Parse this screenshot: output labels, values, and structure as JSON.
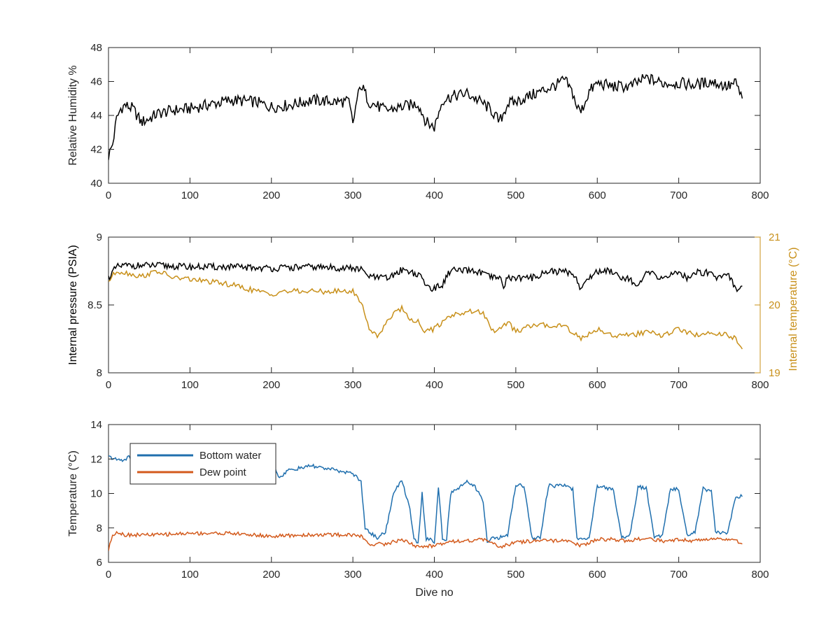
{
  "colors": {
    "humidity": "#000000",
    "pressure": "#000000",
    "internal_temperature": "#C8901A",
    "bottom_water": "#1F6FAE",
    "dew_point": "#D35A1C",
    "axis": "#262626"
  },
  "chart_data": [
    {
      "type": "line",
      "xlabel": "",
      "ylabel": "Relative Humidity %",
      "xlim": [
        0,
        800
      ],
      "ylim": [
        40,
        48
      ],
      "xticks": [
        "0",
        "100",
        "200",
        "300",
        "400",
        "500",
        "600",
        "700",
        "800"
      ],
      "yticks": [
        "40",
        "42",
        "44",
        "46",
        "48"
      ],
      "grid": false,
      "series": [
        {
          "color": "#000000",
          "x": [
            0,
            5,
            10,
            15,
            20,
            30,
            40,
            50,
            60,
            80,
            100,
            120,
            150,
            180,
            200,
            220,
            250,
            280,
            295,
            300,
            305,
            310,
            320,
            340,
            360,
            380,
            390,
            400,
            410,
            420,
            440,
            460,
            470,
            480,
            490,
            500,
            520,
            550,
            560,
            570,
            575,
            580,
            590,
            600,
            620,
            640,
            660,
            680,
            700,
            720,
            740,
            760,
            770,
            778
          ],
          "values": [
            41.6,
            42.3,
            43.8,
            44.4,
            44.6,
            44.4,
            43.6,
            43.8,
            44.1,
            44.3,
            44.4,
            44.6,
            44.9,
            44.8,
            44.5,
            44.6,
            44.9,
            44.8,
            44.8,
            43.5,
            44.9,
            45.8,
            44.8,
            44.3,
            44.5,
            44.7,
            43.6,
            43.3,
            44.9,
            45.1,
            45.3,
            44.7,
            44.3,
            43.6,
            44.7,
            44.8,
            45.2,
            45.8,
            46.1,
            45.3,
            44.5,
            44.2,
            45.4,
            45.9,
            45.7,
            45.7,
            46.2,
            45.9,
            45.9,
            45.8,
            46.0,
            45.7,
            45.9,
            45.0
          ]
        }
      ]
    },
    {
      "type": "line",
      "xlabel": "",
      "ylabel": "Internal pressure (PSIA)",
      "y2label": "Internal temperature (°C)",
      "xlim": [
        0,
        800
      ],
      "ylim": [
        8,
        9
      ],
      "y2lim": [
        19,
        21
      ],
      "xticks": [
        "0",
        "100",
        "200",
        "300",
        "400",
        "500",
        "600",
        "700",
        "800"
      ],
      "yticks": [
        "8",
        "8.5",
        "9"
      ],
      "y2ticks": [
        "19",
        "20",
        "21"
      ],
      "grid": false,
      "series": [
        {
          "axis": "left",
          "color": "#000000",
          "x": [
            0,
            10,
            20,
            60,
            100,
            150,
            200,
            250,
            300,
            310,
            320,
            330,
            345,
            360,
            370,
            385,
            390,
            400,
            410,
            420,
            430,
            450,
            460,
            470,
            480,
            485,
            490,
            500,
            520,
            540,
            570,
            580,
            590,
            600,
            620,
            630,
            640,
            650,
            660,
            680,
            700,
            710,
            720,
            740,
            745,
            760,
            770,
            778
          ],
          "values": [
            8.7,
            8.78,
            8.79,
            8.79,
            8.78,
            8.78,
            8.77,
            8.78,
            8.77,
            8.76,
            8.71,
            8.7,
            8.7,
            8.76,
            8.75,
            8.7,
            8.64,
            8.62,
            8.65,
            8.76,
            8.75,
            8.75,
            8.73,
            8.7,
            8.7,
            8.64,
            8.7,
            8.7,
            8.7,
            8.75,
            8.74,
            8.62,
            8.7,
            8.75,
            8.75,
            8.7,
            8.7,
            8.62,
            8.74,
            8.7,
            8.74,
            8.7,
            8.74,
            8.74,
            8.7,
            8.74,
            8.62,
            8.64
          ]
        },
        {
          "axis": "right",
          "color": "#C8901A",
          "x": [
            0,
            10,
            20,
            40,
            60,
            80,
            100,
            150,
            200,
            210,
            250,
            300,
            310,
            320,
            330,
            340,
            350,
            360,
            370,
            380,
            390,
            400,
            420,
            440,
            460,
            470,
            480,
            490,
            500,
            520,
            540,
            560,
            580,
            600,
            620,
            640,
            660,
            680,
            700,
            720,
            740,
            760,
            770,
            778
          ],
          "values": [
            20.35,
            20.5,
            20.48,
            20.42,
            20.5,
            20.4,
            20.38,
            20.3,
            20.15,
            20.2,
            20.2,
            20.2,
            20.05,
            19.65,
            19.55,
            19.7,
            19.9,
            19.95,
            19.8,
            19.75,
            19.6,
            19.65,
            19.85,
            19.9,
            19.9,
            19.6,
            19.65,
            19.75,
            19.6,
            19.7,
            19.7,
            19.7,
            19.5,
            19.65,
            19.55,
            19.55,
            19.6,
            19.55,
            19.65,
            19.55,
            19.6,
            19.55,
            19.5,
            19.35
          ]
        }
      ]
    },
    {
      "type": "line",
      "xlabel": "Dive no",
      "ylabel": "Temperature (°C)",
      "xlim": [
        0,
        800
      ],
      "ylim": [
        6,
        15
      ],
      "xticks": [
        "0",
        "100",
        "200",
        "300",
        "400",
        "500",
        "600",
        "700",
        "800"
      ],
      "yticks": [
        "6",
        "8",
        "10",
        "12",
        "14"
      ],
      "grid": false,
      "legend_position": "top-left",
      "series": [
        {
          "name": "Bottom water",
          "color": "#1F6FAE",
          "x": [
            0,
            10,
            20,
            25,
            30,
            60,
            100,
            150,
            200,
            210,
            220,
            250,
            280,
            300,
            310,
            315,
            320,
            330,
            340,
            350,
            360,
            370,
            375,
            380,
            385,
            390,
            395,
            400,
            405,
            410,
            415,
            420,
            430,
            440,
            450,
            460,
            465,
            470,
            480,
            490,
            500,
            510,
            520,
            530,
            540,
            560,
            570,
            575,
            580,
            590,
            600,
            610,
            620,
            630,
            640,
            650,
            660,
            670,
            680,
            690,
            700,
            710,
            720,
            730,
            740,
            745,
            760,
            770,
            778
          ],
          "values": [
            12.9,
            12.7,
            12.7,
            12.9,
            12.8,
            12.8,
            12.8,
            12.8,
            12.8,
            11.5,
            12.0,
            12.3,
            12.0,
            11.8,
            11.3,
            8.2,
            8.0,
            7.6,
            8.0,
            10.5,
            11.4,
            9.5,
            7.6,
            7.2,
            10.5,
            7.5,
            7.5,
            7.2,
            11.0,
            7.5,
            7.5,
            10.5,
            10.8,
            11.4,
            10.9,
            10.0,
            7.2,
            7.6,
            7.6,
            7.8,
            11.1,
            11.0,
            7.6,
            7.6,
            11.0,
            11.0,
            10.8,
            7.5,
            7.5,
            7.6,
            11.0,
            10.9,
            10.7,
            7.6,
            7.8,
            10.9,
            10.9,
            7.6,
            7.8,
            10.8,
            10.8,
            7.8,
            8.0,
            10.8,
            10.7,
            8.0,
            7.9,
            10.3,
            10.3
          ]
        },
        {
          "name": "Dew point",
          "color": "#D35A1C",
          "x": [
            0,
            5,
            10,
            20,
            40,
            60,
            100,
            150,
            200,
            250,
            300,
            310,
            320,
            340,
            360,
            380,
            400,
            420,
            440,
            460,
            480,
            500,
            520,
            540,
            560,
            580,
            600,
            620,
            640,
            660,
            680,
            700,
            720,
            740,
            760,
            770,
            778
          ],
          "values": [
            6.8,
            7.8,
            8.0,
            7.8,
            7.8,
            7.8,
            7.9,
            7.9,
            7.7,
            7.8,
            7.8,
            7.7,
            7.2,
            7.2,
            7.5,
            7.0,
            7.1,
            7.4,
            7.4,
            7.5,
            7.0,
            7.3,
            7.4,
            7.4,
            7.4,
            7.1,
            7.5,
            7.5,
            7.4,
            7.6,
            7.4,
            7.5,
            7.4,
            7.6,
            7.5,
            7.4,
            7.2
          ]
        }
      ]
    }
  ]
}
